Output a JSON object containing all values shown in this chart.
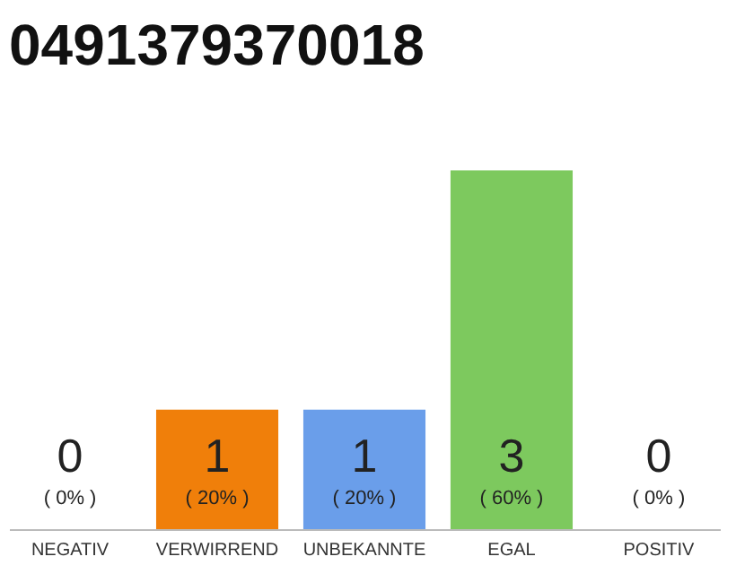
{
  "chart_data": {
    "type": "bar",
    "title": "0491379370018",
    "categories": [
      "NEGATIV",
      "VERWIRREND",
      "UNBEKANNTE",
      "EGAL",
      "POSITIV"
    ],
    "values": [
      0,
      1,
      1,
      3,
      0
    ],
    "colors": [
      "#cccccc",
      "#f07f0a",
      "#6a9eea",
      "#7dc95e",
      "#cccccc"
    ],
    "data_labels": true,
    "tick_labels": "x",
    "annotations": [
      "( 0% )",
      "( 20% )",
      "( 20% )",
      "( 60% )",
      "( 0% )"
    ]
  }
}
